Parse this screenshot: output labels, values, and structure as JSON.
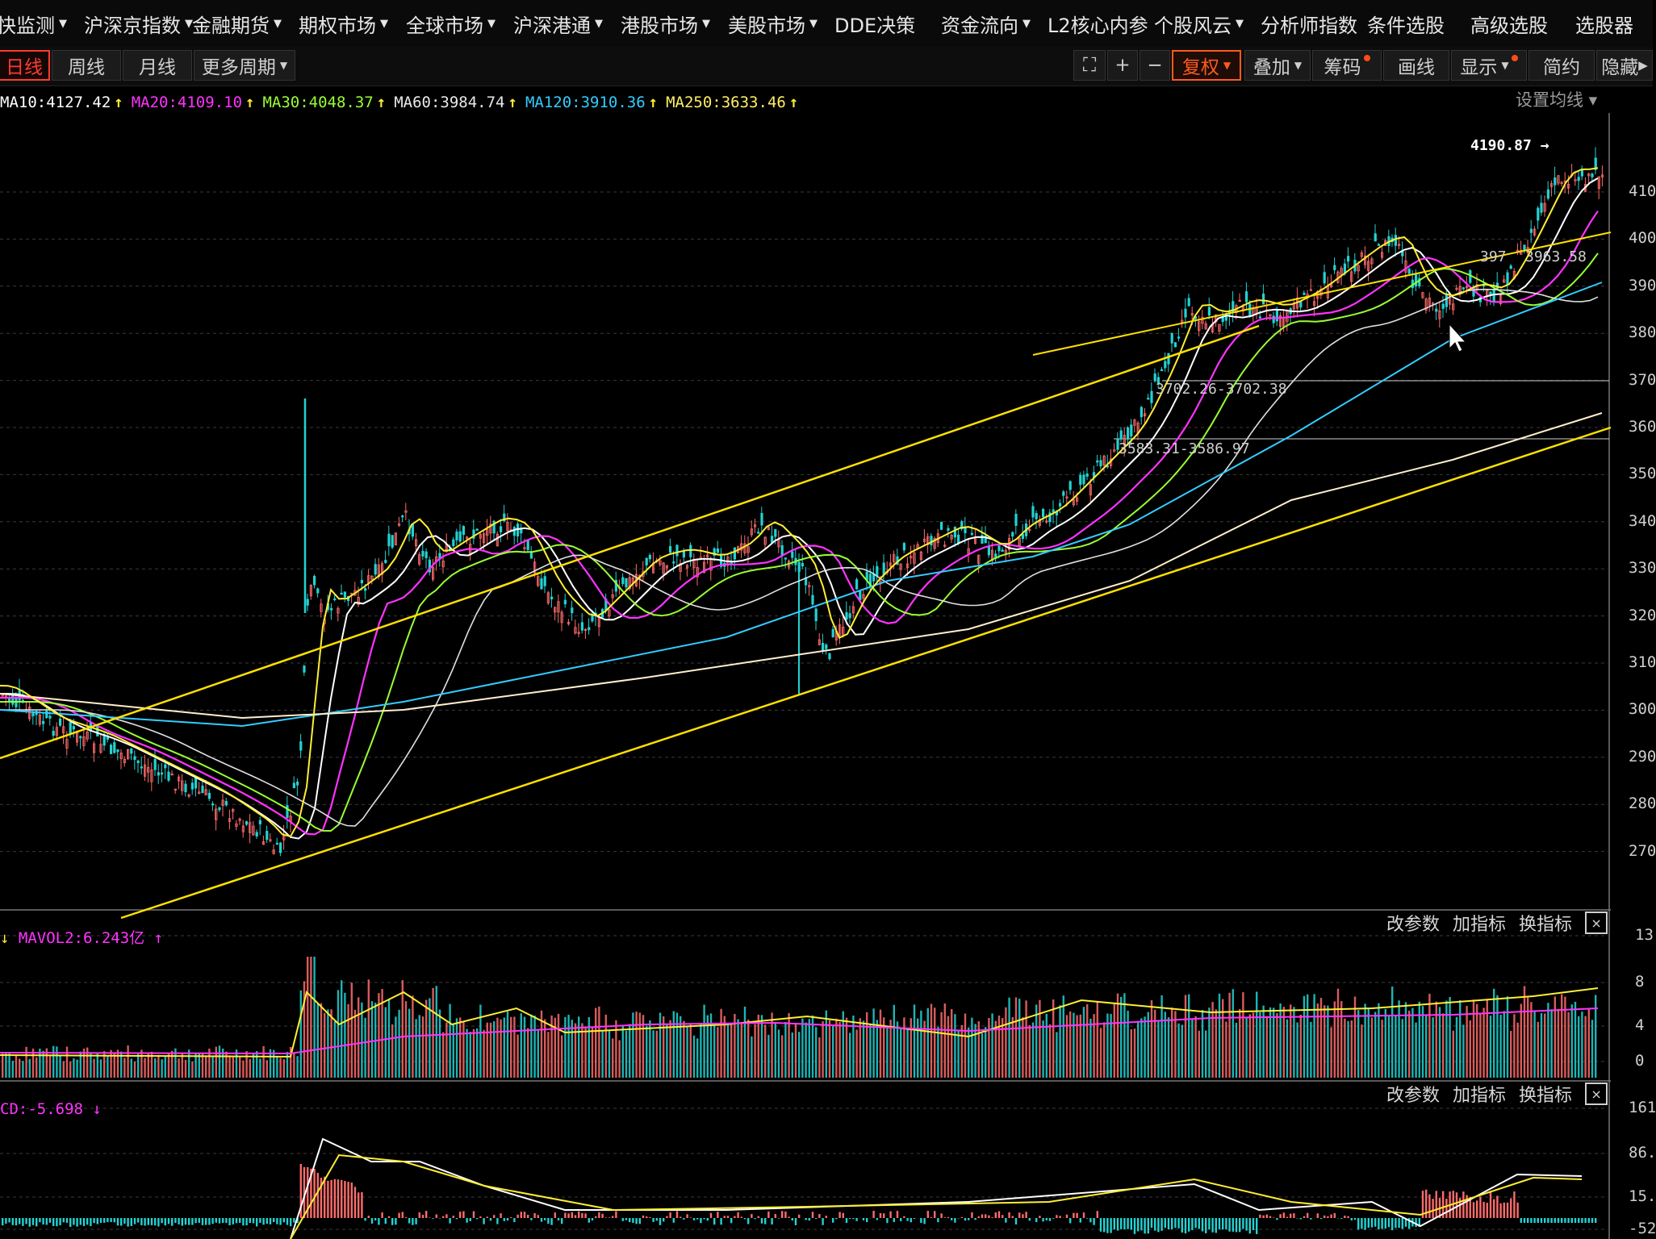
{
  "topnav": {
    "items": [
      {
        "label": "快监测",
        "caret": true
      },
      {
        "label": "沪深京指数",
        "caret": true
      },
      {
        "label": "金融期货",
        "caret": true
      },
      {
        "label": "期权市场",
        "caret": true
      },
      {
        "label": "全球市场",
        "caret": true
      },
      {
        "label": "沪深港通",
        "caret": true
      },
      {
        "label": "港股市场",
        "caret": true
      },
      {
        "label": "美股市场",
        "caret": true
      },
      {
        "label": "DDE决策",
        "caret": false
      },
      {
        "label": "资金流向",
        "caret": true
      },
      {
        "label": "L2核心内参",
        "caret": false
      },
      {
        "label": "个股风云",
        "caret": true
      },
      {
        "label": "分析师指数",
        "caret": false
      },
      {
        "label": "条件选股",
        "caret": false
      },
      {
        "label": "高级选股",
        "caret": false
      },
      {
        "label": "选股器",
        "caret": false
      }
    ]
  },
  "periods": {
    "tabs": [
      "日线",
      "周线",
      "月线",
      "更多周期"
    ],
    "active": 0
  },
  "toolbar": {
    "fuquan": "复权",
    "overlay": "叠加",
    "chips": "筹码",
    "draw": "画线",
    "display": "显示",
    "simple": "简约",
    "hide": "隐藏"
  },
  "ma_legend": [
    {
      "text": "MA10:4127.42",
      "color": "#ffffff"
    },
    {
      "text": "MA20:4109.10",
      "color": "#ff33ff"
    },
    {
      "text": "MA30:4048.37",
      "color": "#99ff33"
    },
    {
      "text": "MA60:3984.74",
      "color": "#e8e8e8"
    },
    {
      "text": "MA120:3910.36",
      "color": "#33ccff"
    },
    {
      "text": "MA250:3633.46",
      "color": "#ffee66"
    }
  ],
  "ma_setting_label": "设置均线",
  "price_labels": {
    "high": "4190.87",
    "mid_right": "397",
    "mid_right2": "3963.58",
    "gap1": "3702.26-3702.38",
    "gap2": "3583.31-3586.97"
  },
  "price_axis": [
    "410",
    "400",
    "390",
    "380",
    "370",
    "360",
    "350",
    "340",
    "330",
    "320",
    "310",
    "300",
    "290",
    "280",
    "270"
  ],
  "volume_panel": {
    "label": "MAVOL2:6.243亿",
    "axis": [
      "13",
      "8",
      "4",
      "0"
    ]
  },
  "macd_panel": {
    "label": "CD:-5.698",
    "axis": [
      "161",
      "86.",
      "15.",
      "-52"
    ]
  },
  "panel_buttons": {
    "params": "改参数",
    "add": "加指标",
    "swap": "换指标",
    "close": "×"
  },
  "colors": {
    "up": "#ff6b6b",
    "down": "#22d3d3",
    "trend": "#ffe000",
    "accent": "#ff5a1f"
  },
  "chart_data": {
    "type": "line",
    "series": [
      {
        "name": "MA10",
        "last": 4127.42
      },
      {
        "name": "MA20",
        "last": 4109.1
      },
      {
        "name": "MA30",
        "last": 4048.37
      },
      {
        "name": "MA60",
        "last": 3984.74
      },
      {
        "name": "MA120",
        "last": 3910.36
      },
      {
        "name": "MA250",
        "last": 3633.46
      }
    ],
    "high": 4190.87,
    "ylim": [
      2640,
      4230
    ]
  }
}
